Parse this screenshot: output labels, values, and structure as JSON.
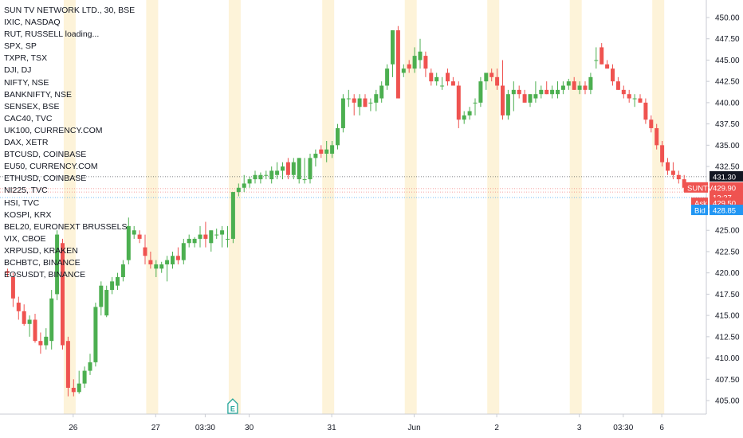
{
  "chart_data": {
    "type": "candlestick",
    "title": "SUN TV NETWORK LTD., 30, BSE",
    "legend": [
      "IXIC, NASDAQ",
      "RUT, RUSSELL loading...",
      "SPX, SP",
      "TXPR, TSX",
      "DJI, DJ",
      "NIFTY, NSE",
      "BANKNIFTY, NSE",
      "SENSEX, BSE",
      "CAC40, TVC",
      "UK100, CURRENCY.COM",
      "DAX, XETR",
      "BTCUSD, COINBASE",
      "EU50, CURRENCY.COM",
      "ETHUSD, COINBASE",
      "NI225, TVC",
      "HSI, TVC",
      "KOSPI, KRX",
      "BEL20, EURONEXT BRUSSELS",
      "VIX, CBOE",
      "XRPUSD, KRAKEN",
      "BCHBTC, BINANCE",
      "EOSUSDT, BINANCE"
    ],
    "ylim": [
      403.3,
      451.5
    ],
    "y_ticks": [
      405.0,
      407.5,
      410.0,
      412.5,
      415.0,
      417.5,
      420.0,
      422.5,
      425.0,
      427.5,
      430.0,
      432.5,
      435.0,
      437.5,
      440.0,
      442.5,
      445.0,
      447.5,
      450.0
    ],
    "x_ticks": [
      {
        "label": "26",
        "bar": 12
      },
      {
        "label": "27",
        "bar": 27
      },
      {
        "label": "03:30",
        "bar": 36
      },
      {
        "label": "30",
        "bar": 44
      },
      {
        "label": "31",
        "bar": 59
      },
      {
        "label": "Jun",
        "bar": 74
      },
      {
        "label": "2",
        "bar": 89
      },
      {
        "label": "3",
        "bar": 104
      },
      {
        "label": "03:30",
        "bar": 112
      },
      {
        "label": "6",
        "bar": 119
      }
    ],
    "session_bands": [
      11,
      26,
      41,
      58,
      73,
      88,
      103,
      118
    ],
    "earnings_marker": {
      "label": "E",
      "bar": 41
    },
    "candles": [
      [
        420.2,
        420.5,
        419.5,
        420.0
      ],
      [
        419.5,
        420.0,
        416.0,
        417.0
      ],
      [
        416.5,
        417.2,
        414.5,
        415.5
      ],
      [
        415.5,
        416.3,
        413.8,
        414.0
      ],
      [
        414.0,
        415.0,
        412.5,
        414.5
      ],
      [
        414.5,
        415.2,
        411.8,
        412.0
      ],
      [
        412.0,
        413.0,
        410.5,
        411.5
      ],
      [
        411.5,
        413.5,
        411.0,
        412.5
      ],
      [
        412.0,
        418.0,
        411.0,
        417.0
      ],
      [
        417.5,
        425.0,
        416.8,
        424.5
      ],
      [
        423.5,
        424.0,
        411.0,
        411.5
      ],
      [
        412.0,
        412.5,
        405.5,
        406.5
      ],
      [
        406.5,
        407.5,
        405.5,
        406.0
      ],
      [
        406.0,
        408.5,
        405.8,
        407.0
      ],
      [
        407.0,
        409.0,
        406.5,
        408.5
      ],
      [
        408.5,
        410.5,
        408.0,
        409.5
      ],
      [
        409.5,
        416.5,
        409.0,
        416.0
      ],
      [
        416.0,
        419.0,
        415.0,
        418.5
      ],
      [
        415.0,
        418.5,
        414.8,
        418.0
      ],
      [
        418.0,
        419.5,
        417.5,
        419.0
      ],
      [
        418.5,
        420.0,
        418.0,
        419.5
      ],
      [
        419.5,
        421.5,
        419.0,
        421.0
      ],
      [
        421.5,
        426.5,
        421.0,
        425.5
      ],
      [
        424.5,
        425.5,
        424.0,
        425.0
      ],
      [
        424.5,
        425.0,
        423.5,
        424.0
      ],
      [
        423.0,
        424.5,
        421.0,
        422.0
      ],
      [
        421.5,
        422.5,
        420.5,
        421.0
      ],
      [
        420.5,
        421.5,
        419.5,
        421.0
      ],
      [
        420.5,
        421.3,
        420.0,
        421.0
      ],
      [
        421.0,
        422.0,
        419.0,
        421.5
      ],
      [
        421.0,
        422.5,
        420.5,
        422.0
      ],
      [
        422.0,
        423.0,
        421.0,
        421.5
      ],
      [
        421.5,
        424.0,
        421.0,
        423.5
      ],
      [
        423.5,
        424.5,
        423.0,
        424.0
      ],
      [
        423.5,
        424.2,
        423.0,
        424.0
      ],
      [
        424.0,
        425.5,
        423.0,
        424.5
      ],
      [
        424.5,
        426.0,
        423.0,
        424.0
      ],
      [
        423.5,
        425.0,
        422.5,
        425.0
      ],
      [
        424.5,
        425.2,
        424.0,
        424.5
      ],
      [
        424.5,
        425.5,
        423.0,
        425.0
      ],
      [
        424.0,
        425.5,
        423.0,
        424.0
      ],
      [
        424.0,
        429.5,
        423.5,
        429.5
      ],
      [
        429.5,
        430.5,
        429.0,
        430.0
      ],
      [
        430.0,
        431.5,
        429.5,
        430.5
      ],
      [
        430.5,
        431.3,
        430.0,
        431.0
      ],
      [
        431.0,
        432.0,
        430.5,
        431.5
      ],
      [
        431.0,
        431.8,
        430.5,
        431.5
      ],
      [
        431.5,
        432.0,
        431.0,
        431.5
      ],
      [
        431.0,
        432.5,
        430.5,
        432.0
      ],
      [
        431.5,
        433.0,
        431.0,
        432.0
      ],
      [
        432.0,
        433.0,
        431.0,
        432.5
      ],
      [
        433.0,
        433.5,
        431.0,
        431.5
      ],
      [
        431.5,
        433.5,
        431.0,
        433.0
      ],
      [
        431.0,
        433.5,
        430.5,
        433.5
      ],
      [
        431.0,
        433.5,
        430.5,
        431.0
      ],
      [
        431.0,
        434.0,
        430.5,
        433.5
      ],
      [
        433.5,
        434.5,
        432.5,
        434.0
      ],
      [
        434.5,
        435.0,
        433.5,
        434.0
      ],
      [
        434.0,
        435.5,
        433.0,
        434.5
      ],
      [
        434.0,
        435.5,
        433.5,
        435.0
      ],
      [
        435.0,
        437.5,
        434.5,
        437.0
      ],
      [
        437.0,
        441.0,
        436.5,
        440.5
      ],
      [
        440.5,
        441.5,
        439.5,
        440.5
      ],
      [
        440.5,
        441.0,
        438.5,
        440.0
      ],
      [
        439.5,
        441.0,
        438.5,
        440.5
      ],
      [
        440.5,
        441.0,
        439.5,
        439.5
      ],
      [
        440.0,
        440.5,
        439.0,
        440.0
      ],
      [
        440.0,
        441.5,
        439.0,
        441.0
      ],
      [
        440.5,
        442.5,
        440.0,
        442.0
      ],
      [
        442.0,
        444.5,
        441.5,
        444.0
      ],
      [
        444.5,
        448.5,
        443.0,
        448.5
      ],
      [
        448.5,
        449.0,
        440.5,
        440.5
      ],
      [
        443.5,
        444.5,
        443.0,
        444.0
      ],
      [
        444.5,
        445.0,
        443.5,
        444.0
      ],
      [
        444.0,
        446.5,
        443.5,
        445.5
      ],
      [
        445.0,
        447.5,
        444.0,
        446.0
      ],
      [
        445.5,
        446.0,
        443.0,
        444.0
      ],
      [
        443.5,
        444.0,
        442.0,
        442.5
      ],
      [
        442.5,
        443.5,
        442.0,
        443.0
      ],
      [
        442.0,
        443.0,
        441.5,
        442.0
      ],
      [
        443.5,
        444.0,
        442.0,
        442.5
      ],
      [
        442.5,
        443.0,
        442.0,
        442.0
      ],
      [
        442.0,
        442.5,
        437.0,
        438.0
      ],
      [
        438.0,
        439.0,
        437.5,
        438.5
      ],
      [
        438.5,
        439.5,
        438.0,
        439.0
      ],
      [
        440.0,
        440.5,
        438.5,
        440.0
      ],
      [
        440.0,
        443.0,
        439.5,
        442.5
      ],
      [
        442.5,
        443.5,
        441.5,
        443.5
      ],
      [
        443.5,
        444.0,
        442.5,
        443.0
      ],
      [
        443.0,
        444.0,
        441.5,
        442.0
      ],
      [
        442.0,
        445.0,
        438.0,
        438.5
      ],
      [
        438.5,
        441.5,
        438.0,
        441.0
      ],
      [
        441.0,
        442.5,
        439.0,
        441.5
      ],
      [
        441.5,
        442.0,
        440.5,
        441.0
      ],
      [
        441.0,
        441.5,
        440.0,
        440.0
      ],
      [
        440.0,
        441.0,
        439.5,
        441.0
      ],
      [
        440.5,
        442.5,
        440.0,
        441.0
      ],
      [
        441.0,
        442.0,
        440.5,
        441.5
      ],
      [
        441.5,
        442.5,
        441.0,
        441.0
      ],
      [
        441.0,
        442.0,
        440.5,
        441.5
      ],
      [
        441.0,
        442.5,
        440.5,
        441.5
      ],
      [
        441.5,
        442.5,
        441.0,
        442.0
      ],
      [
        442.0,
        442.8,
        441.5,
        442.5
      ],
      [
        442.5,
        443.0,
        441.5,
        441.5
      ],
      [
        441.5,
        442.5,
        441.0,
        442.0
      ],
      [
        442.0,
        442.5,
        441.0,
        441.5
      ],
      [
        441.5,
        443.5,
        441.0,
        443.0
      ],
      [
        445.0,
        446.5,
        444.0,
        445.0
      ],
      [
        446.5,
        447.0,
        444.5,
        444.5
      ],
      [
        444.5,
        445.0,
        444.0,
        444.0
      ],
      [
        444.0,
        444.5,
        442.0,
        442.5
      ],
      [
        442.5,
        443.0,
        441.5,
        441.5
      ],
      [
        441.5,
        442.0,
        440.5,
        441.0
      ],
      [
        441.0,
        441.5,
        440.0,
        440.5
      ],
      [
        440.5,
        441.0,
        439.5,
        440.5
      ],
      [
        440.5,
        441.0,
        440.0,
        440.0
      ],
      [
        440.0,
        440.5,
        437.5,
        438.0
      ],
      [
        438.0,
        438.5,
        436.5,
        437.0
      ],
      [
        437.0,
        437.5,
        434.5,
        435.0
      ],
      [
        435.0,
        435.5,
        432.5,
        433.0
      ],
      [
        433.0,
        433.5,
        431.5,
        432.0
      ],
      [
        432.0,
        433.0,
        431.0,
        431.5
      ],
      [
        431.5,
        432.0,
        430.5,
        431.0
      ],
      [
        431.0,
        431.5,
        429.5,
        430.0
      ]
    ],
    "price_lines": [
      {
        "value": 431.3,
        "label": "431.30",
        "color": "#131722"
      },
      {
        "value": 429.9,
        "label": "429.90",
        "color": "#ef5350"
      },
      {
        "value": 429.5,
        "label": "429.50",
        "color": "#ef5350"
      },
      {
        "value": 428.85,
        "label": "428.85",
        "color": "#2196f3"
      }
    ],
    "price_tags": [
      {
        "label": "SUNTV",
        "color": "#ef5350"
      },
      {
        "label": "12:37",
        "color": "#ef5350"
      },
      {
        "label": "Ask",
        "color": "#ef5350"
      },
      {
        "label": "Bid",
        "color": "#2196f3"
      }
    ],
    "colors": {
      "up": "#4caf50",
      "down": "#ef5350",
      "band": "#fdf3d9",
      "grid": "#f0f3fa",
      "axis_text": "#131722"
    }
  }
}
